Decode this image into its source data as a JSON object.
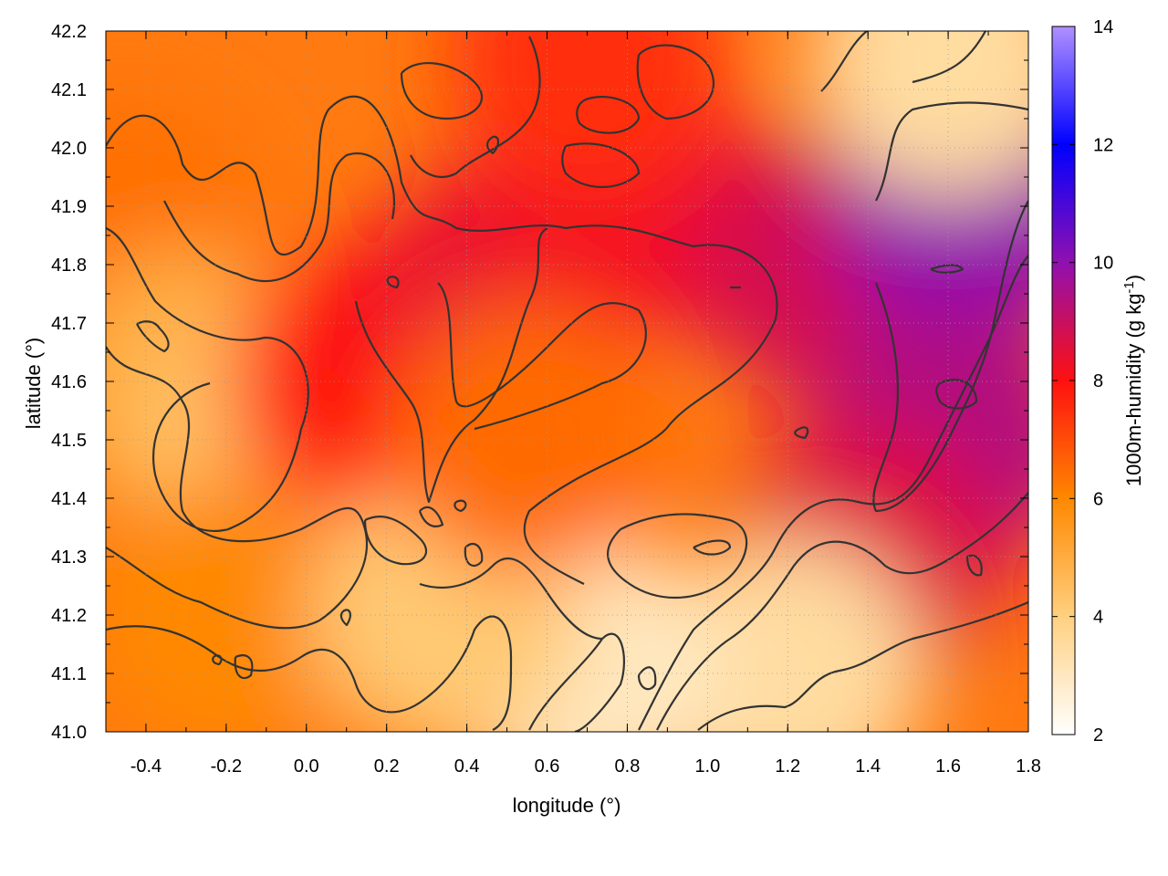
{
  "chart_data": {
    "type": "heatmap",
    "title": "",
    "xlabel": "longitude (°)",
    "ylabel": "latitude (°)",
    "xlim": [
      -0.5,
      1.8
    ],
    "ylim": [
      41.0,
      42.2
    ],
    "x_ticks": [
      -0.4,
      -0.2,
      0.0,
      0.2,
      0.4,
      0.6,
      0.8,
      1.0,
      1.2,
      1.4,
      1.6,
      1.8
    ],
    "x_tick_labels": [
      "-0.4",
      "-0.2",
      "0.0",
      "0.2",
      "0.4",
      "0.6",
      "0.8",
      "1.0",
      "1.2",
      "1.4",
      "1.6",
      "1.8"
    ],
    "y_ticks": [
      41.0,
      41.1,
      41.2,
      41.3,
      41.4,
      41.5,
      41.6,
      41.7,
      41.8,
      41.9,
      42.0,
      42.1,
      42.2
    ],
    "y_tick_labels": [
      "41.0",
      "41.1",
      "41.2",
      "41.3",
      "41.4",
      "41.5",
      "41.6",
      "41.7",
      "41.8",
      "41.9",
      "42.0",
      "42.1",
      "42.2"
    ],
    "grid": true,
    "colorbar": {
      "label_prefix": "1000m-humidity (g kg",
      "label_sup": "-1",
      "label_suffix": ")",
      "range": [
        2,
        14
      ],
      "ticks": [
        2,
        4,
        6,
        8,
        10,
        12,
        14
      ],
      "tick_labels": [
        "2",
        "4",
        "6",
        "8",
        "10",
        "12",
        "14"
      ],
      "color_stops": [
        {
          "value": 2,
          "color": "#ffffff"
        },
        {
          "value": 4,
          "color": "#ffd080"
        },
        {
          "value": 6,
          "color": "#ff8800"
        },
        {
          "value": 8,
          "color": "#ff1010"
        },
        {
          "value": 10,
          "color": "#9010b0"
        },
        {
          "value": 12,
          "color": "#0000ff"
        },
        {
          "value": 14,
          "color": "#b090ff"
        }
      ]
    },
    "contour_color": "#333333",
    "field_regions": [
      {
        "lon": -0.45,
        "lat": 41.85,
        "value": 6.4
      },
      {
        "lon": -0.3,
        "lat": 41.6,
        "value": 5.0
      },
      {
        "lon": -0.1,
        "lat": 41.5,
        "value": 4.4
      },
      {
        "lon": -0.2,
        "lat": 41.2,
        "value": 6.0
      },
      {
        "lon": 0.15,
        "lat": 41.6,
        "value": 8.0
      },
      {
        "lon": 0.5,
        "lat": 41.75,
        "value": 8.4
      },
      {
        "lon": 0.8,
        "lat": 41.9,
        "value": 8.2
      },
      {
        "lon": 1.3,
        "lat": 41.8,
        "value": 8.8
      },
      {
        "lon": 1.65,
        "lat": 41.9,
        "value": 10.0
      },
      {
        "lon": 1.6,
        "lat": 41.5,
        "value": 9.4
      },
      {
        "lon": 1.4,
        "lat": 41.3,
        "value": 8.6
      },
      {
        "lon": 1.2,
        "lat": 41.1,
        "value": 3.5
      },
      {
        "lon": 0.7,
        "lat": 41.1,
        "value": 3.0
      },
      {
        "lon": 0.35,
        "lat": 41.2,
        "value": 4.2
      },
      {
        "lon": 0.55,
        "lat": 41.5,
        "value": 6.5
      },
      {
        "lon": 1.6,
        "lat": 42.15,
        "value": 3.5
      },
      {
        "lon": 0.7,
        "lat": 42.15,
        "value": 7.5
      }
    ]
  }
}
